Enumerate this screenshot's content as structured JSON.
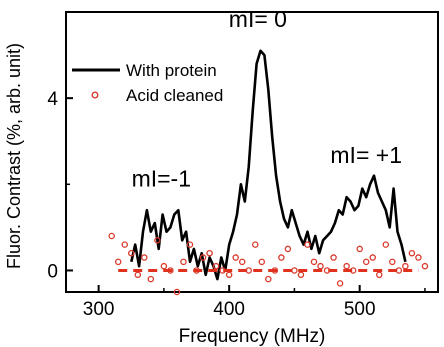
{
  "chart_data": {
    "type": "line",
    "xlabel": "Frequency (MHz)",
    "ylabel": "Fluor. Contrast (%, arb. unit)",
    "xlim": [
      275,
      560
    ],
    "ylim": [
      -0.5,
      6.0
    ],
    "xticks": [
      300,
      400,
      500
    ],
    "yticks": [
      0,
      4
    ],
    "xtick_labels": [
      "300",
      "400",
      "500"
    ],
    "ytick_labels": [
      "0",
      "4"
    ],
    "grid": false,
    "legend_position": "top-left",
    "annotations": [
      {
        "text": "mI= 0",
        "x": 422,
        "y": 5.65
      },
      {
        "text": "mI=-1",
        "x": 348,
        "y": 1.95
      },
      {
        "text": "mI= +1",
        "x": 505,
        "y": 2.5
      }
    ],
    "series": [
      {
        "name": "With protein",
        "style": "line",
        "color": "#000000",
        "x": [
          325,
          328,
          331,
          334,
          337,
          340,
          343,
          346,
          349,
          352,
          355,
          358,
          361,
          364,
          367,
          370,
          373,
          376,
          379,
          382,
          385,
          388,
          391,
          394,
          397,
          400,
          403,
          406,
          409,
          412,
          415,
          418,
          421,
          424,
          427,
          430,
          433,
          436,
          439,
          442,
          445,
          448,
          451,
          454,
          457,
          460,
          463,
          466,
          469,
          472,
          475,
          478,
          481,
          484,
          487,
          490,
          493,
          496,
          499,
          502,
          505,
          508,
          511,
          514,
          517,
          520,
          523,
          526,
          529,
          532,
          535
        ],
        "y": [
          0.2,
          0.6,
          0.1,
          0.9,
          1.4,
          0.9,
          1.1,
          0.5,
          1.3,
          0.9,
          1.0,
          1.3,
          1.4,
          0.7,
          0.9,
          0.2,
          0.5,
          0.1,
          0.4,
          -0.1,
          0.3,
          0.1,
          -0.2,
          0.3,
          0.0,
          0.6,
          0.9,
          1.3,
          2.0,
          1.6,
          2.4,
          3.7,
          4.8,
          5.1,
          5.0,
          4.2,
          3.1,
          2.2,
          1.6,
          1.2,
          1.0,
          1.4,
          1.1,
          0.8,
          0.6,
          0.9,
          0.5,
          0.8,
          0.4,
          0.7,
          0.8,
          0.9,
          1.1,
          1.4,
          1.3,
          1.7,
          1.6,
          1.4,
          1.5,
          1.9,
          1.7,
          2.0,
          2.2,
          1.8,
          1.6,
          1.4,
          1.0,
          1.9,
          0.9,
          0.6,
          0.2
        ]
      },
      {
        "name": "Acid cleaned",
        "style": "scatter",
        "color": "#d93a2b",
        "x": [
          310,
          315,
          320,
          325,
          330,
          335,
          340,
          345,
          350,
          355,
          360,
          365,
          370,
          375,
          380,
          385,
          390,
          395,
          400,
          405,
          410,
          415,
          420,
          425,
          430,
          435,
          440,
          445,
          450,
          455,
          460,
          465,
          470,
          475,
          480,
          485,
          490,
          495,
          500,
          505,
          510,
          515,
          520,
          525,
          530,
          535,
          540,
          545,
          550
        ],
        "y": [
          0.8,
          0.2,
          0.6,
          0.4,
          -0.1,
          0.3,
          -0.2,
          0.7,
          0.1,
          0.0,
          -0.5,
          0.2,
          0.6,
          0.0,
          0.3,
          0.4,
          0.1,
          0.0,
          -0.1,
          0.3,
          0.2,
          0.0,
          0.6,
          0.2,
          -0.2,
          0.0,
          0.3,
          0.5,
          0.0,
          -0.1,
          0.6,
          0.2,
          0.1,
          0.0,
          0.3,
          -0.3,
          0.1,
          0.0,
          0.5,
          0.2,
          0.3,
          -0.1,
          0.6,
          0.2,
          0.0,
          0.1,
          0.4,
          0.3,
          0.1
        ]
      },
      {
        "name": "",
        "style": "dashed",
        "color": "#e0301e",
        "x": [
          315,
          545
        ],
        "y": [
          0,
          0
        ]
      }
    ]
  }
}
